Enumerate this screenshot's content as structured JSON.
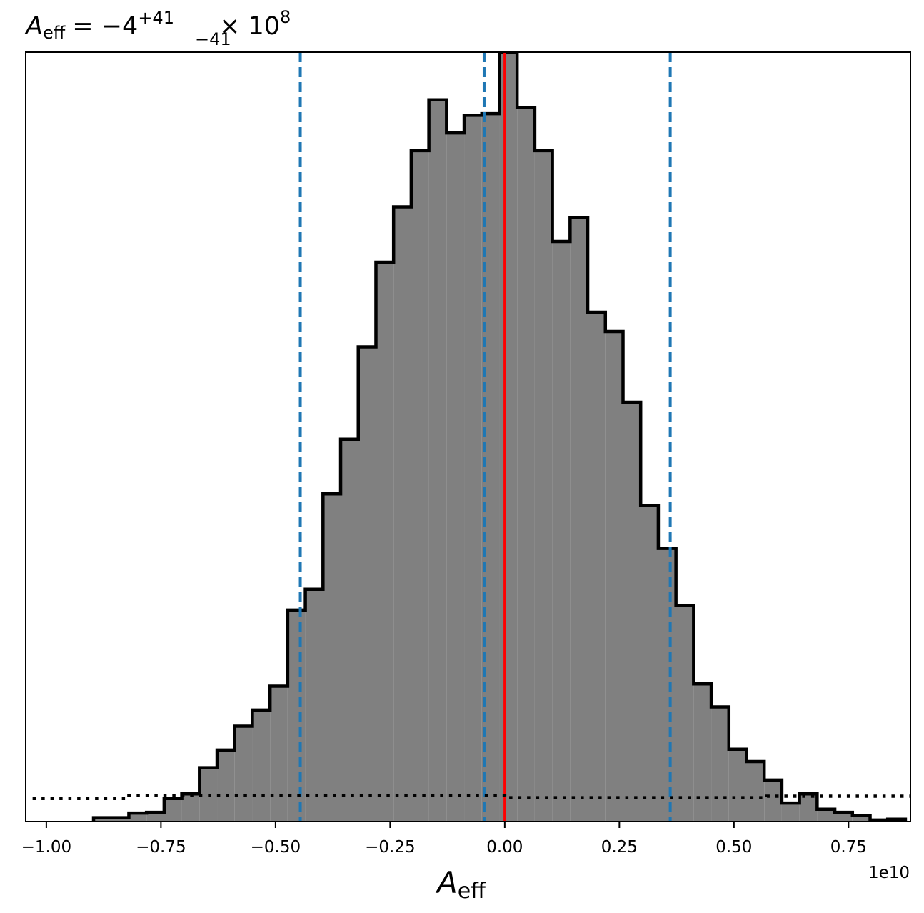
{
  "chart_data": {
    "type": "histogram",
    "title": {
      "symbol": "A",
      "subscript": "eff",
      "relation": "= −4",
      "upper": "+41",
      "lower": "−41",
      "times": "× 10",
      "exponent": "8"
    },
    "xlabel": {
      "symbol": "A",
      "subscript": "eff"
    },
    "offset_text": "1e10",
    "x_ticks": [
      -1.0,
      -0.75,
      -0.5,
      -0.25,
      0.0,
      0.25,
      0.5,
      0.75
    ],
    "x_tick_labels": [
      "−1.00",
      "−0.75",
      "−0.50",
      "−0.25",
      "0.00",
      "0.25",
      "0.50",
      "0.75"
    ],
    "xlim": [
      -1.045,
      0.885
    ],
    "ylim": [
      0,
      1.0
    ],
    "bin_width": 0.0385,
    "bins": [
      {
        "x0": -0.897,
        "x1": -0.8585,
        "y": 0.005
      },
      {
        "x0": -0.8585,
        "x1": -0.82,
        "y": 0.005
      },
      {
        "x0": -0.82,
        "x1": -0.7815,
        "y": 0.011
      },
      {
        "x0": -0.7815,
        "x1": -0.743,
        "y": 0.012
      },
      {
        "x0": -0.743,
        "x1": -0.7045,
        "y": 0.03
      },
      {
        "x0": -0.7045,
        "x1": -0.666,
        "y": 0.036
      },
      {
        "x0": -0.666,
        "x1": -0.6275,
        "y": 0.07
      },
      {
        "x0": -0.6275,
        "x1": -0.589,
        "y": 0.093
      },
      {
        "x0": -0.589,
        "x1": -0.5505,
        "y": 0.124
      },
      {
        "x0": -0.5505,
        "x1": -0.512,
        "y": 0.145
      },
      {
        "x0": -0.512,
        "x1": -0.4735,
        "y": 0.176
      },
      {
        "x0": -0.4735,
        "x1": -0.435,
        "y": 0.275
      },
      {
        "x0": -0.435,
        "x1": -0.3965,
        "y": 0.302
      },
      {
        "x0": -0.3965,
        "x1": -0.358,
        "y": 0.426
      },
      {
        "x0": -0.358,
        "x1": -0.3195,
        "y": 0.497
      },
      {
        "x0": -0.3195,
        "x1": -0.281,
        "y": 0.617
      },
      {
        "x0": -0.281,
        "x1": -0.2425,
        "y": 0.727
      },
      {
        "x0": -0.2425,
        "x1": -0.204,
        "y": 0.799
      },
      {
        "x0": -0.204,
        "x1": -0.1655,
        "y": 0.872
      },
      {
        "x0": -0.1655,
        "x1": -0.127,
        "y": 0.938
      },
      {
        "x0": -0.127,
        "x1": -0.0885,
        "y": 0.895
      },
      {
        "x0": -0.0885,
        "x1": -0.05,
        "y": 0.918
      },
      {
        "x0": -0.05,
        "x1": -0.0115,
        "y": 0.92
      },
      {
        "x0": -0.0115,
        "x1": 0.027,
        "y": 1.0
      },
      {
        "x0": 0.027,
        "x1": 0.0655,
        "y": 0.928
      },
      {
        "x0": 0.0655,
        "x1": 0.104,
        "y": 0.872
      },
      {
        "x0": 0.104,
        "x1": 0.1425,
        "y": 0.754
      },
      {
        "x0": 0.1425,
        "x1": 0.181,
        "y": 0.785
      },
      {
        "x0": 0.181,
        "x1": 0.2195,
        "y": 0.662
      },
      {
        "x0": 0.2195,
        "x1": 0.258,
        "y": 0.637
      },
      {
        "x0": 0.258,
        "x1": 0.2965,
        "y": 0.545
      },
      {
        "x0": 0.2965,
        "x1": 0.335,
        "y": 0.411
      },
      {
        "x0": 0.335,
        "x1": 0.3735,
        "y": 0.355
      },
      {
        "x0": 0.3735,
        "x1": 0.412,
        "y": 0.281
      },
      {
        "x0": 0.412,
        "x1": 0.4505,
        "y": 0.179
      },
      {
        "x0": 0.4505,
        "x1": 0.489,
        "y": 0.149
      },
      {
        "x0": 0.489,
        "x1": 0.5275,
        "y": 0.094
      },
      {
        "x0": 0.5275,
        "x1": 0.566,
        "y": 0.078
      },
      {
        "x0": 0.566,
        "x1": 0.6045,
        "y": 0.054
      },
      {
        "x0": 0.6045,
        "x1": 0.643,
        "y": 0.024
      },
      {
        "x0": 0.643,
        "x1": 0.6815,
        "y": 0.036
      },
      {
        "x0": 0.6815,
        "x1": 0.72,
        "y": 0.016
      },
      {
        "x0": 0.72,
        "x1": 0.7585,
        "y": 0.012
      },
      {
        "x0": 0.7585,
        "x1": 0.797,
        "y": 0.008
      },
      {
        "x0": 0.797,
        "x1": 0.8355,
        "y": 0.002
      },
      {
        "x0": 0.8355,
        "x1": 0.874,
        "y": 0.003
      }
    ],
    "quantile_lines": [
      -0.446,
      -0.045,
      0.361
    ],
    "median_line": 0.0,
    "prior_line": [
      {
        "x": -1.03,
        "y": 0.03
      },
      {
        "x": -0.82,
        "y": 0.03
      },
      {
        "x": -0.82,
        "y": 0.034
      },
      {
        "x": 0.0,
        "y": 0.034
      },
      {
        "x": 0.0,
        "y": 0.031
      },
      {
        "x": 0.572,
        "y": 0.031
      },
      {
        "x": 0.572,
        "y": 0.033
      },
      {
        "x": 0.885,
        "y": 0.033
      }
    ],
    "colors": {
      "fill": "#808080",
      "edge": "#000000",
      "quantile": "#1f77b4",
      "median": "#ff0000",
      "prior": "#000000"
    }
  }
}
